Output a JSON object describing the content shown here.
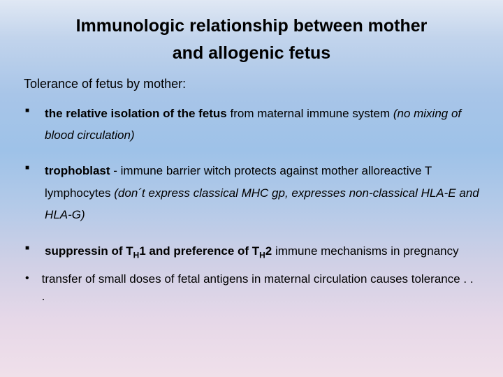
{
  "title_line1": "Immunologic relationship between mother",
  "title_line2": "and allogenic fetus",
  "subhead": "Tolerance of fetus by mother:",
  "b1_bold": "the relative isolation of the fetus",
  "b1_rest": " from maternal immune system ",
  "b1_ital": "(no mixing of blood circulation)",
  "b2_bold": "trophoblast",
  "b2_rest": " - immune barrier witch protects against mother alloreactive T lymphocytes ",
  "b2_ital": "(don´t express classical MHC gp, expresses  non-classical HLA-E and HLA-G)",
  "b3_pre": "suppressin of T",
  "b3_sub1": "H",
  "b3_mid1": "1 and preference of T",
  "b3_sub2": "H",
  "b3_mid2": "2",
  "b3_rest": " immune mechanisms in pregnancy",
  "b4": "transfer of small doses of fetal antigens in maternal circulation causes tolerance . . .",
  "colors": {
    "text": "#000000",
    "gradient_top": "#e0e8f4",
    "gradient_bottom": "#f0e0ea"
  },
  "fonts": {
    "title_family": "Verdana",
    "body_family": "Tahoma",
    "title_size_pt": 19,
    "body_size_pt": 13
  }
}
